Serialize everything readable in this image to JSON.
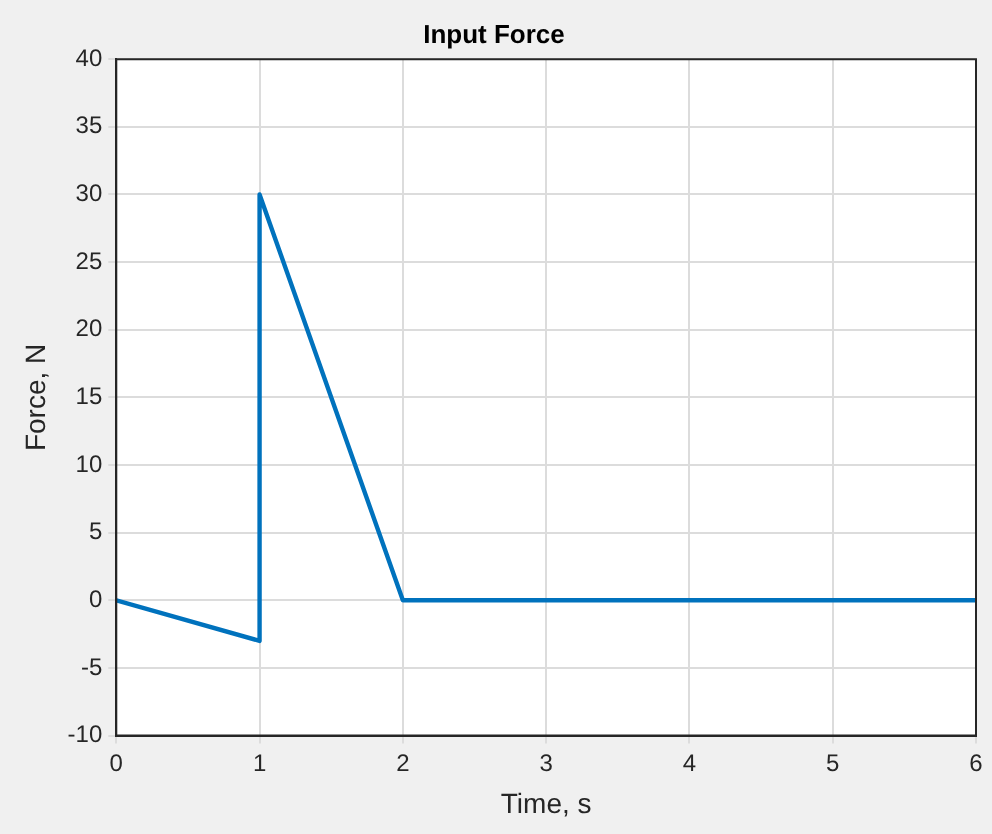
{
  "chart_data": {
    "type": "line",
    "title": "Input Force",
    "xlabel": "Time, s",
    "ylabel": "Force, N",
    "x": [
      0,
      1,
      1,
      2,
      6
    ],
    "series": [
      {
        "color": "#0072bd",
        "values": [
          0,
          -3,
          30,
          0,
          0
        ]
      }
    ],
    "xlim": [
      0,
      6
    ],
    "xticks": [
      0,
      1,
      2,
      3,
      4,
      5,
      6
    ],
    "ylim": [
      -10,
      40
    ],
    "yticks": [
      -10,
      -5,
      0,
      5,
      10,
      15,
      20,
      25,
      30,
      35,
      40
    ],
    "grid": true,
    "legend": false,
    "line_style": "solid"
  }
}
